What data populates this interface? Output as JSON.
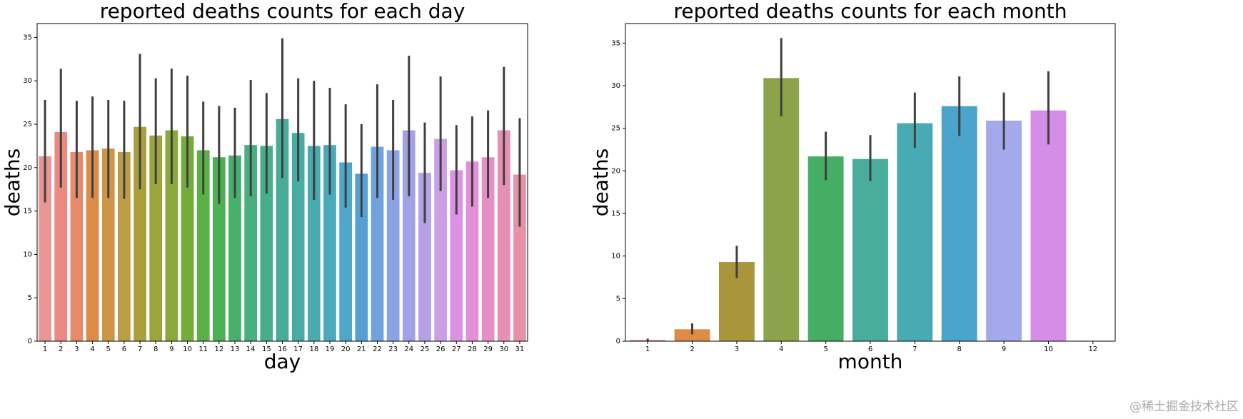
{
  "chart_data": [
    {
      "type": "bar",
      "title": "reported deaths counts for each day",
      "x_label": "day",
      "y_label": "deaths",
      "categories": [
        "1",
        "2",
        "3",
        "4",
        "5",
        "6",
        "7",
        "8",
        "9",
        "10",
        "11",
        "12",
        "13",
        "14",
        "15",
        "16",
        "17",
        "18",
        "19",
        "20",
        "21",
        "22",
        "23",
        "24",
        "25",
        "26",
        "27",
        "28",
        "29",
        "30",
        "31"
      ],
      "values": [
        21.3,
        24.1,
        21.8,
        22.0,
        22.2,
        21.8,
        24.7,
        23.7,
        24.3,
        23.6,
        22.0,
        21.2,
        21.4,
        22.6,
        22.5,
        25.6,
        24.0,
        22.5,
        22.6,
        20.6,
        19.3,
        22.4,
        22.0,
        24.3,
        19.4,
        23.3,
        19.7,
        20.7,
        21.2,
        24.3,
        19.2
      ],
      "ci_low": [
        16.0,
        17.7,
        16.5,
        16.5,
        16.5,
        16.4,
        17.5,
        18.1,
        18.1,
        17.7,
        16.9,
        15.8,
        16.5,
        16.7,
        17.0,
        18.8,
        18.4,
        16.3,
        16.9,
        15.4,
        14.3,
        16.5,
        16.3,
        16.7,
        13.6,
        17.3,
        14.6,
        15.5,
        16.5,
        18.0,
        13.2
      ],
      "ci_high": [
        27.8,
        31.4,
        27.7,
        28.2,
        27.8,
        27.7,
        33.1,
        30.3,
        31.4,
        30.6,
        27.6,
        27.1,
        26.9,
        30.1,
        28.6,
        34.9,
        30.3,
        30.0,
        29.2,
        27.3,
        25.0,
        29.6,
        27.8,
        32.9,
        25.2,
        30.5,
        24.9,
        25.9,
        26.6,
        31.6,
        25.7
      ],
      "colors": [
        "#e89595",
        "#e9897f",
        "#e58a6a",
        "#dc8c46",
        "#cc9646",
        "#bd9c46",
        "#ab9f3b",
        "#9ca43c",
        "#8aa83c",
        "#74ac3c",
        "#5aaf46",
        "#4bb153",
        "#48b06d",
        "#48af80",
        "#47ae8c",
        "#47ad99",
        "#48aca4",
        "#49abaf",
        "#4aaabb",
        "#4ea6c8",
        "#54a1d6",
        "#6ea3de",
        "#8aa3e2",
        "#a1a1e5",
        "#b6a0e6",
        "#caa0e5",
        "#db94e4",
        "#e38ed6",
        "#e68fc6",
        "#e88fb4",
        "#e991a6"
      ],
      "ylim": [
        0,
        36.6
      ],
      "yticks": [
        0,
        5,
        10,
        15,
        20,
        25,
        30,
        35
      ]
    },
    {
      "type": "bar",
      "title": "reported deaths counts for each month",
      "x_label": "month",
      "y_label": "deaths",
      "categories": [
        "1",
        "2",
        "3",
        "4",
        "5",
        "6",
        "7",
        "8",
        "9",
        "10",
        "12"
      ],
      "values": [
        0.15,
        1.4,
        9.3,
        30.9,
        21.7,
        21.4,
        25.6,
        27.6,
        25.9,
        27.1,
        0
      ],
      "ci_low": [
        0,
        0.8,
        7.4,
        26.4,
        18.9,
        18.8,
        22.7,
        24.1,
        22.5,
        23.1,
        null
      ],
      "ci_high": [
        0.3,
        2.1,
        11.2,
        35.6,
        24.6,
        24.2,
        29.2,
        31.1,
        29.2,
        31.7,
        null
      ],
      "colors": [
        "#e8918f",
        "#de8b43",
        "#a8953c",
        "#8ba44a",
        "#45ae64",
        "#48ad9b",
        "#48aab3",
        "#4aa4cc",
        "#a4a9ec",
        "#d48ee8",
        "#e895c0"
      ],
      "ylim": [
        0,
        37.3
      ],
      "yticks": [
        0,
        5,
        10,
        15,
        20,
        25,
        30,
        35
      ]
    }
  ],
  "watermark": "@稀土掘金技术社区"
}
